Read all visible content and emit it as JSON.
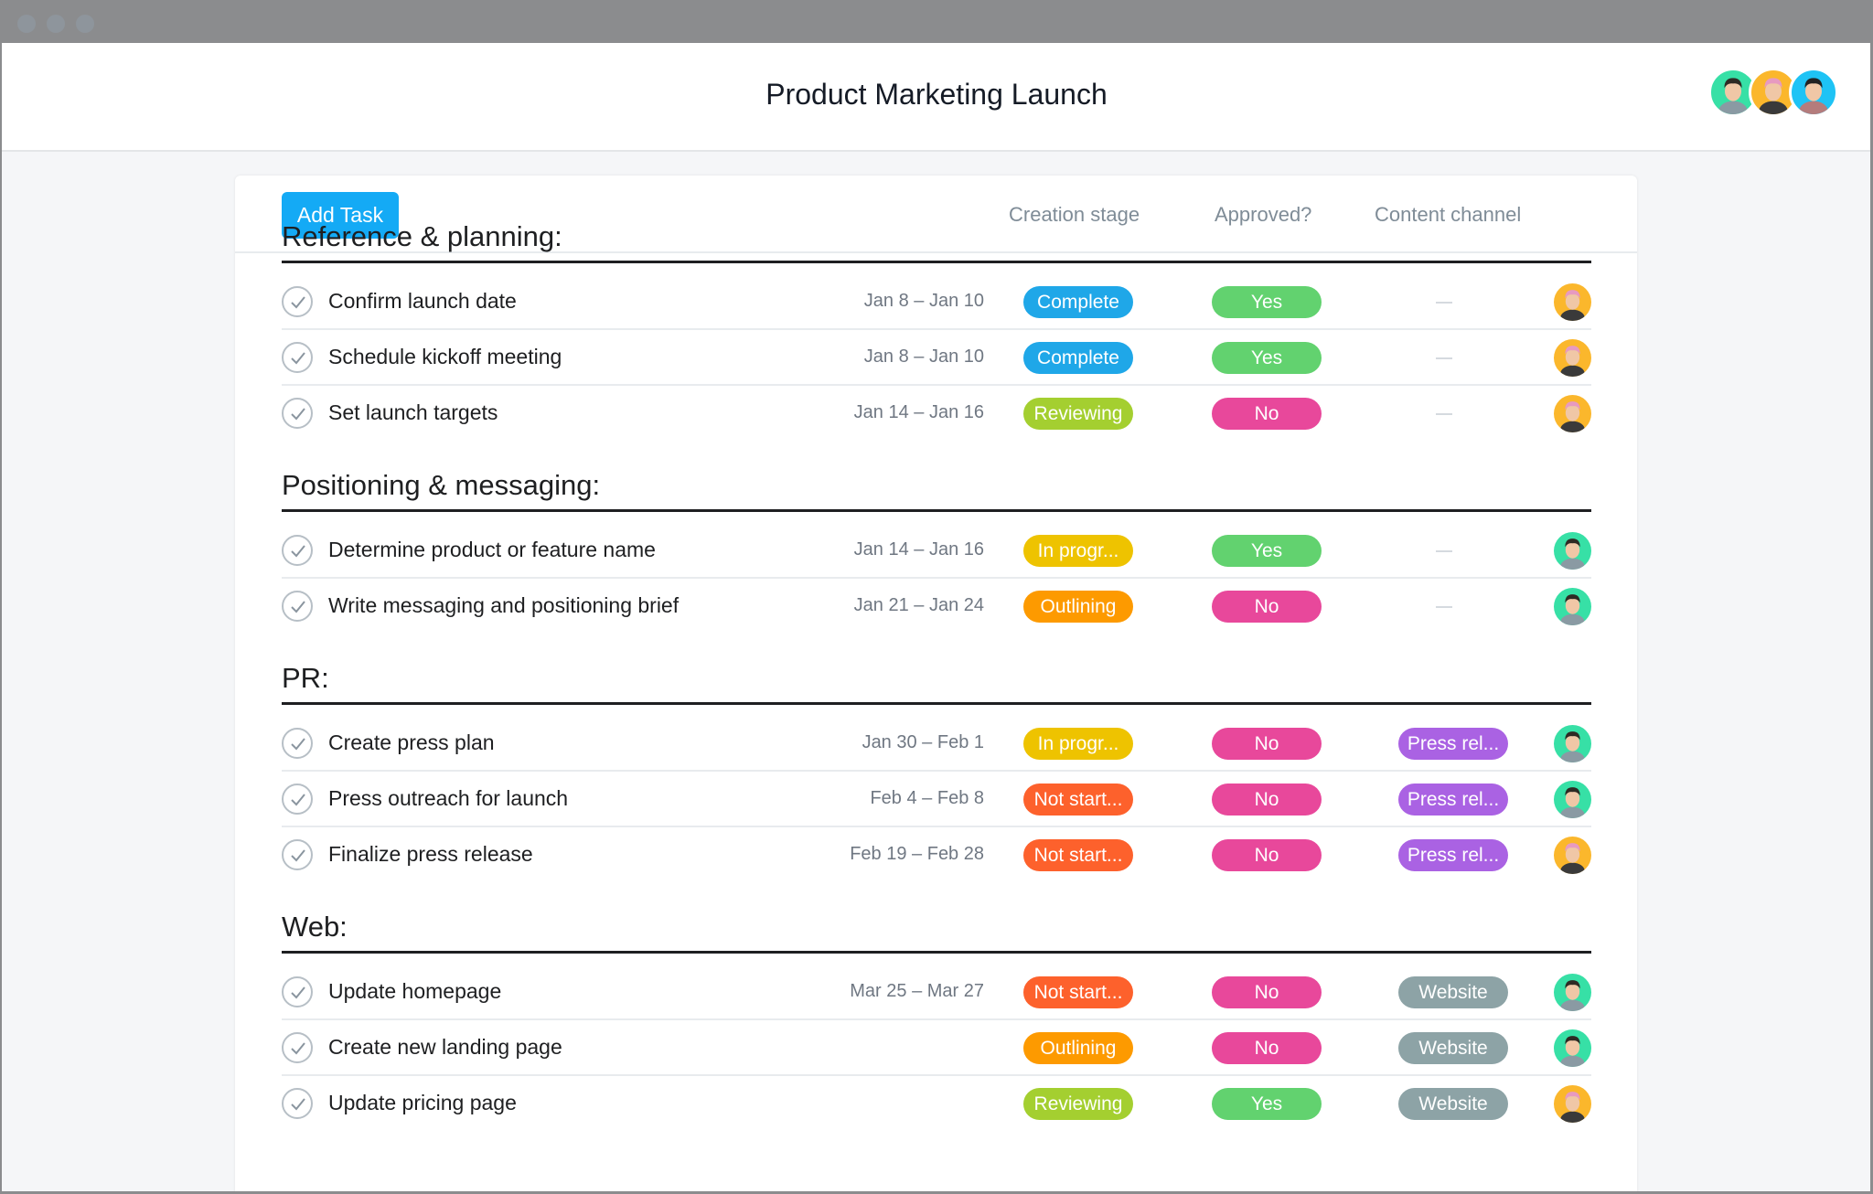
{
  "window": {
    "title": "Product Marketing Launch",
    "traffic_lights": [
      "close",
      "minimize",
      "maximize"
    ]
  },
  "header": {
    "members": [
      {
        "name": "member-1",
        "bg": "#37e0a6"
      },
      {
        "name": "member-2",
        "bg": "#fbb72c"
      },
      {
        "name": "member-3",
        "bg": "#1ec3f5"
      }
    ]
  },
  "toolbar": {
    "add_task_label": "Add Task",
    "columns": [
      "Creation stage",
      "Approved?",
      "Content channel"
    ]
  },
  "colors": {
    "Complete": "#1fa7e8",
    "Reviewing": "#a4cf30",
    "In progr...": "#eec300",
    "Outlining": "#fd9a00",
    "Not start...": "#fd612c",
    "Yes": "#62d26f",
    "No": "#e8489b",
    "Press rel...": "#aa62e3",
    "Website": "#8da3a6",
    "accent": "#14aaf5"
  },
  "sections": [
    {
      "title": "Reference & planning:",
      "tasks": [
        {
          "name": "Confirm launch date",
          "dates": "Jan 8 – Jan 10",
          "stage": "Complete",
          "approved": "Yes",
          "channel": "—",
          "assignee": "member-2"
        },
        {
          "name": "Schedule kickoff meeting",
          "dates": "Jan 8 – Jan 10",
          "stage": "Complete",
          "approved": "Yes",
          "channel": "—",
          "assignee": "member-2"
        },
        {
          "name": "Set launch targets",
          "dates": "Jan 14 – Jan 16",
          "stage": "Reviewing",
          "approved": "No",
          "channel": "—",
          "assignee": "member-2"
        }
      ]
    },
    {
      "title": "Positioning & messaging:",
      "tasks": [
        {
          "name": "Determine product or feature name",
          "dates": "Jan 14 – Jan 16",
          "stage": "In progr...",
          "approved": "Yes",
          "channel": "—",
          "assignee": "member-1"
        },
        {
          "name": "Write messaging and positioning brief",
          "dates": "Jan 21 – Jan 24",
          "stage": "Outlining",
          "approved": "No",
          "channel": "—",
          "assignee": "member-1"
        }
      ]
    },
    {
      "title": "PR:",
      "tasks": [
        {
          "name": "Create press plan",
          "dates": "Jan 30 – Feb 1",
          "stage": "In progr...",
          "approved": "No",
          "channel": "Press rel...",
          "assignee": "member-1"
        },
        {
          "name": "Press outreach for launch",
          "dates": "Feb 4 – Feb 8",
          "stage": "Not start...",
          "approved": "No",
          "channel": "Press rel...",
          "assignee": "member-1"
        },
        {
          "name": "Finalize press release",
          "dates": "Feb 19 – Feb 28",
          "stage": "Not start...",
          "approved": "No",
          "channel": "Press rel...",
          "assignee": "member-2"
        }
      ]
    },
    {
      "title": "Web:",
      "tasks": [
        {
          "name": "Update homepage",
          "dates": "Mar 25 – Mar 27",
          "stage": "Not start...",
          "approved": "No",
          "channel": "Website",
          "assignee": "member-1"
        },
        {
          "name": "Create new landing page",
          "dates": "",
          "stage": "Outlining",
          "approved": "No",
          "channel": "Website",
          "assignee": "member-1"
        },
        {
          "name": "Update pricing page",
          "dates": "",
          "stage": "Reviewing",
          "approved": "Yes",
          "channel": "Website",
          "assignee": "member-2"
        }
      ]
    }
  ]
}
